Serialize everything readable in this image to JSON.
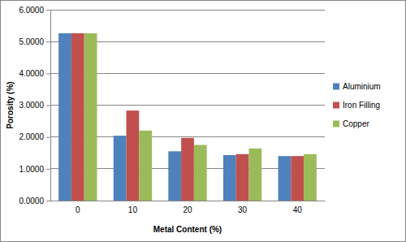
{
  "chart_data": {
    "type": "bar",
    "x_label": "Metal Content (%)",
    "y_label": "Porosity (%)",
    "categories": [
      "0",
      "10",
      "20",
      "30",
      "40"
    ],
    "series": [
      {
        "name": "Aluminium",
        "color": "#4f81bd",
        "values": [
          5.26,
          2.04,
          1.55,
          1.43,
          1.4
        ]
      },
      {
        "name": "Iron Filling",
        "color": "#c0504d",
        "values": [
          5.26,
          2.83,
          1.97,
          1.46,
          1.4
        ]
      },
      {
        "name": "Copper",
        "color": "#9bbb59",
        "values": [
          5.26,
          2.2,
          1.75,
          1.64,
          1.46
        ]
      }
    ],
    "ylim": [
      0,
      6
    ],
    "yticks": [
      {
        "value": 0,
        "label": "0.0000"
      },
      {
        "value": 1,
        "label": "1.0000"
      },
      {
        "value": 2,
        "label": "2.0000"
      },
      {
        "value": 3,
        "label": "3.0000"
      },
      {
        "value": 4,
        "label": "4.0000"
      },
      {
        "value": 5,
        "label": "5.0000"
      },
      {
        "value": 6,
        "label": "6.0000"
      }
    ],
    "grid": true,
    "legend": "right"
  }
}
